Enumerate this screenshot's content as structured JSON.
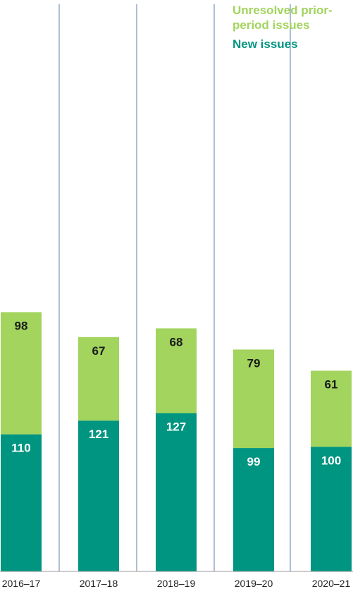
{
  "chart_data": {
    "type": "bar",
    "stacked": true,
    "categories": [
      "2016–17",
      "2017–18",
      "2018–19",
      "2019–20",
      "2020–21"
    ],
    "series": [
      {
        "name": "New issues",
        "values": [
          110,
          121,
          127,
          99,
          100
        ],
        "color": "#009580",
        "label_color": "#ffffff"
      },
      {
        "name": "Unresolved prior-period issues",
        "values": [
          98,
          67,
          68,
          79,
          61
        ],
        "color": "#a2d45e",
        "label_color": "#1a1a1a"
      }
    ],
    "legend": {
      "position": "top-right"
    },
    "divider_color": "#5b7fa6"
  }
}
